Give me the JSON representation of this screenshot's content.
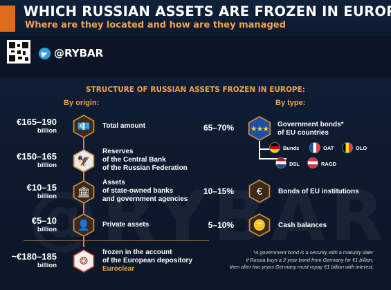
{
  "header": {
    "title": "WHICH RUSSIAN ASSETS ARE FROZEN IN EUROPE",
    "subtitle": "Where are they located and how are they managed",
    "brand": "@RYBAR"
  },
  "watermark": "@RYBAR",
  "section_title": "STRUCTURE OF RUSSIAN ASSETS FROZEN IN EUROPE:",
  "by_origin": {
    "heading": "By origin:",
    "items": [
      {
        "amount": "€165–190",
        "unit": "billion",
        "label": "Total amount",
        "icon": "money-icon"
      },
      {
        "amount": "€150–165",
        "unit": "billion",
        "label_lines": [
          "Reserves",
          "of the Central Bank",
          "of the Russian Federation"
        ],
        "icon": "central-bank-emblem-icon"
      },
      {
        "amount": "€10–15",
        "unit": "billion",
        "label_lines": [
          "Assets",
          "of state-owned banks",
          "and government agencies"
        ],
        "icon": "bank-building-icon"
      },
      {
        "amount": "€5–10",
        "unit": "billion",
        "label": "Private assets",
        "icon": "person-icon"
      }
    ],
    "footer": {
      "amount": "~€180–185",
      "unit": "billion",
      "label_lines": [
        "frozen in the account",
        "of the European depository"
      ],
      "highlight": "Euroclear",
      "icon": "euroclear-logo-icon"
    }
  },
  "by_type": {
    "heading": "By type:",
    "items": [
      {
        "pct": "65–70%",
        "label_lines": [
          "Government bonds*",
          "of EU countries"
        ],
        "icon": "eu-flag-icon"
      },
      {
        "pct": "10–15%",
        "label": "Bonds of EU institutions",
        "icon": "document-euro-icon"
      },
      {
        "pct": "5–10%",
        "label": "Cash balances",
        "icon": "coins-icon"
      }
    ],
    "bonds": [
      {
        "name": "Bunds",
        "flag": "germany"
      },
      {
        "name": "OAT",
        "flag": "france"
      },
      {
        "name": "OLO",
        "flag": "belgium"
      },
      {
        "name": "DSL",
        "flag": "netherlands"
      },
      {
        "name": "RAGD",
        "flag": "austria"
      }
    ]
  },
  "note_lines": [
    "*A government bond is a security with a maturity date:",
    "if Russia buys a 2-year bond from Germany for €1 billion,",
    "then after two years Germany must repay €1 billion with interest."
  ],
  "colors": {
    "accent": "#f2a24a",
    "hex_border": "#c98a3a",
    "background": "#0b1526"
  }
}
